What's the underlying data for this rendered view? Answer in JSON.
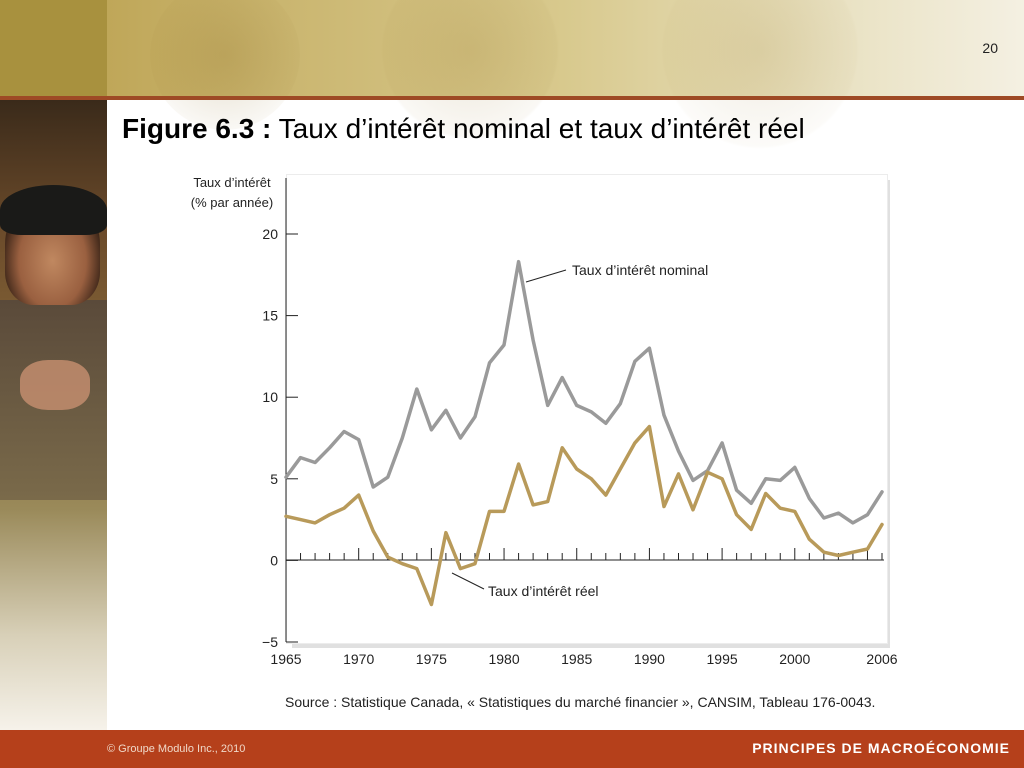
{
  "slide": {
    "number": "20",
    "title_prefix": "Figure 6.3 :",
    "title_text": "Taux d’intérêt nominal et taux d’intérêt réel",
    "source": "Source : Statistique Canada, « Statistiques du marché financier », CANSIM, Tableau 176-0043.",
    "copyright": "© Groupe Modulo Inc., 2010",
    "book_title": "PRINCIPES DE MACROÉCONOMIE"
  },
  "colors": {
    "nominal": "#9a9a9a",
    "real": "#b89a5a",
    "banner_rule": "#9e4a25",
    "footer_bar": "#b5401b"
  },
  "chart_data": {
    "type": "line",
    "ylabel_line1": "Taux d’intérêt",
    "ylabel_line2": "(% par année)",
    "ylim": [
      -5,
      20
    ],
    "yticks": [
      -5,
      0,
      5,
      10,
      15,
      20
    ],
    "xlim": [
      1965,
      2006
    ],
    "xtick_labels": [
      1965,
      1970,
      1975,
      1980,
      1985,
      1990,
      1995,
      2000,
      2006
    ],
    "x": [
      1965,
      1966,
      1967,
      1968,
      1969,
      1970,
      1971,
      1972,
      1973,
      1974,
      1975,
      1976,
      1977,
      1978,
      1979,
      1980,
      1981,
      1982,
      1983,
      1984,
      1985,
      1986,
      1987,
      1988,
      1989,
      1990,
      1991,
      1992,
      1993,
      1994,
      1995,
      1996,
      1997,
      1998,
      1999,
      2000,
      2001,
      2002,
      2003,
      2004,
      2005,
      2006
    ],
    "series": [
      {
        "name": "Taux d’intérêt nominal",
        "key": "nominal",
        "values": [
          5.1,
          6.3,
          6.0,
          6.9,
          7.9,
          7.4,
          4.5,
          5.1,
          7.5,
          10.5,
          8.0,
          9.2,
          7.5,
          8.8,
          12.1,
          13.2,
          18.3,
          13.5,
          9.5,
          11.2,
          9.5,
          9.1,
          8.4,
          9.6,
          12.2,
          13.0,
          8.9,
          6.7,
          4.9,
          5.5,
          7.2,
          4.3,
          3.5,
          5.0,
          4.9,
          5.7,
          3.8,
          2.6,
          2.9,
          2.3,
          2.8,
          4.2
        ]
      },
      {
        "name": "Taux d’intérêt réel",
        "key": "real",
        "values": [
          2.7,
          2.5,
          2.3,
          2.8,
          3.2,
          4.0,
          1.8,
          0.2,
          -0.2,
          -0.5,
          -2.7,
          1.7,
          -0.5,
          -0.2,
          3.0,
          3.0,
          5.9,
          3.4,
          3.6,
          6.9,
          5.6,
          5.0,
          4.0,
          5.6,
          7.2,
          8.2,
          3.3,
          5.3,
          3.1,
          5.4,
          5.0,
          2.8,
          1.9,
          4.1,
          3.2,
          3.0,
          1.3,
          0.5,
          0.3,
          0.5,
          0.7,
          2.2
        ]
      }
    ]
  }
}
